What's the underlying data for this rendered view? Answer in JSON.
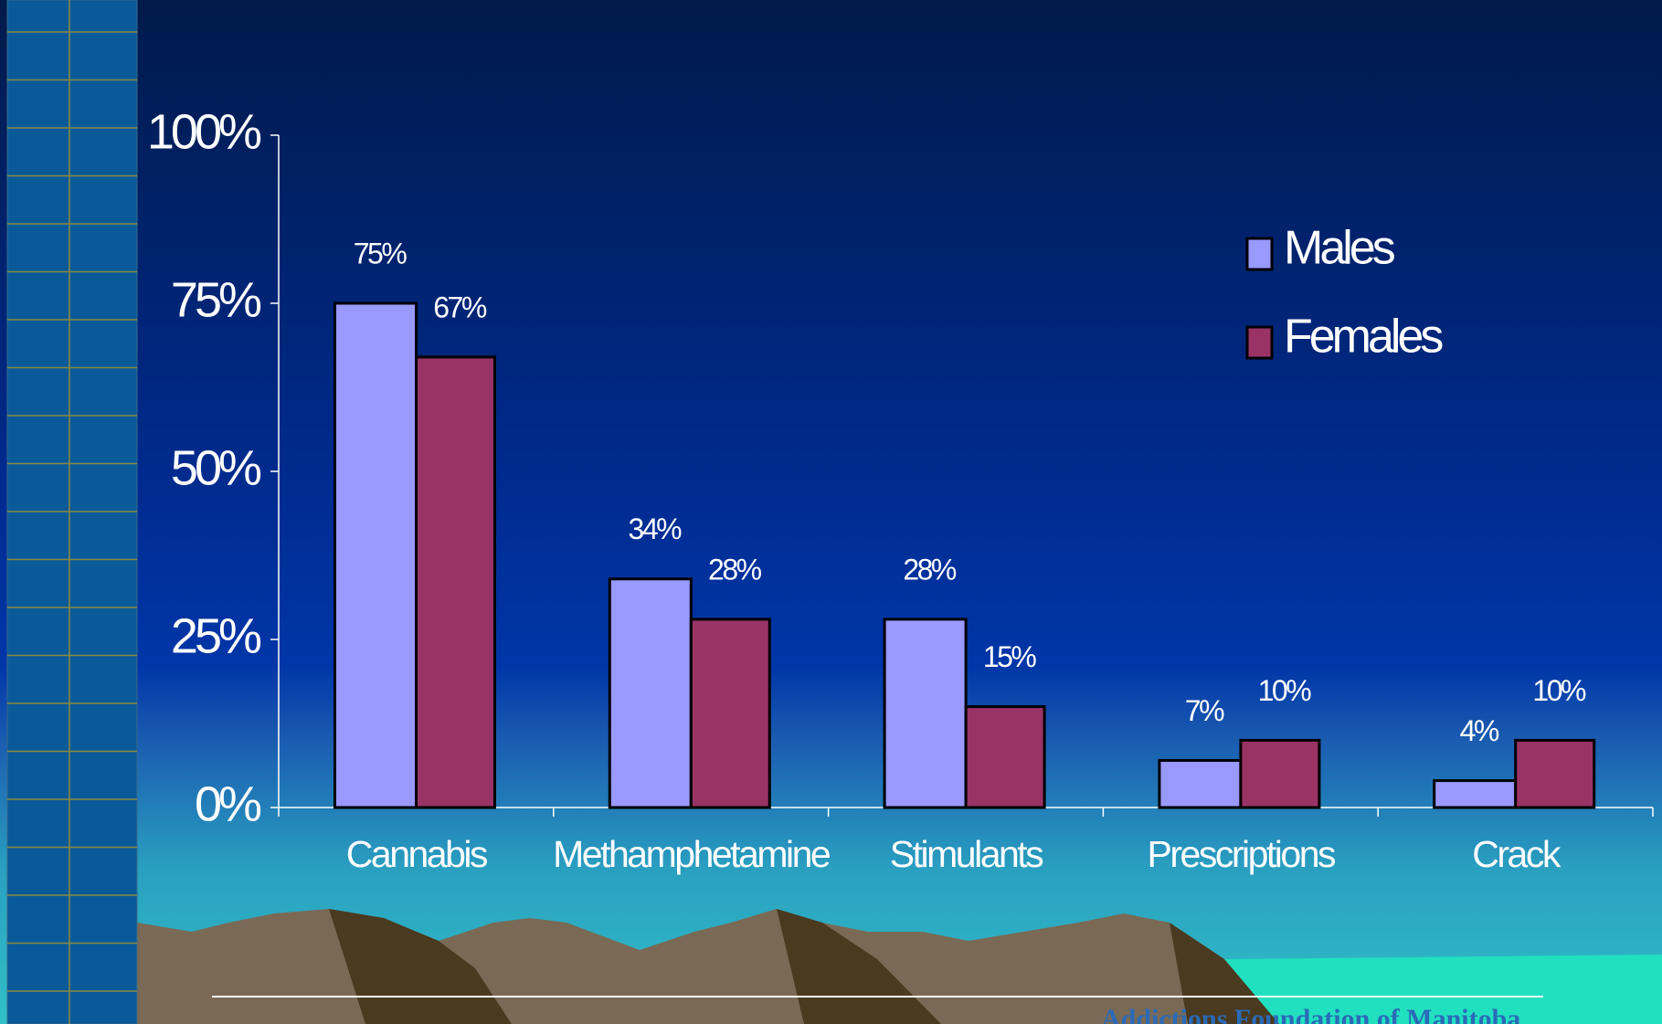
{
  "chart_data": {
    "type": "bar",
    "categories": [
      "Cannabis",
      "Methamphetamine",
      "Stimulants",
      "Prescriptions",
      "Crack"
    ],
    "series": [
      {
        "name": "Males",
        "color": "#9999ff",
        "values": [
          75,
          34,
          28,
          7,
          4
        ],
        "value_labels": [
          "75%",
          "34%",
          "28%",
          "7%",
          "4%"
        ]
      },
      {
        "name": "Females",
        "color": "#993366",
        "values": [
          67,
          28,
          15,
          10,
          10
        ],
        "value_labels": [
          "67%",
          "28%",
          "15%",
          "10%",
          "10%"
        ]
      }
    ],
    "ylim": [
      0,
      100
    ],
    "yticks": [
      {
        "value": 0,
        "label": "0%"
      },
      {
        "value": 25,
        "label": "25%"
      },
      {
        "value": 50,
        "label": "50%"
      },
      {
        "value": 75,
        "label": "75%"
      },
      {
        "value": 100,
        "label": "100%"
      }
    ],
    "grid": false,
    "legend": "top-right"
  },
  "footer": "Addictions Foundation of Manitoba"
}
